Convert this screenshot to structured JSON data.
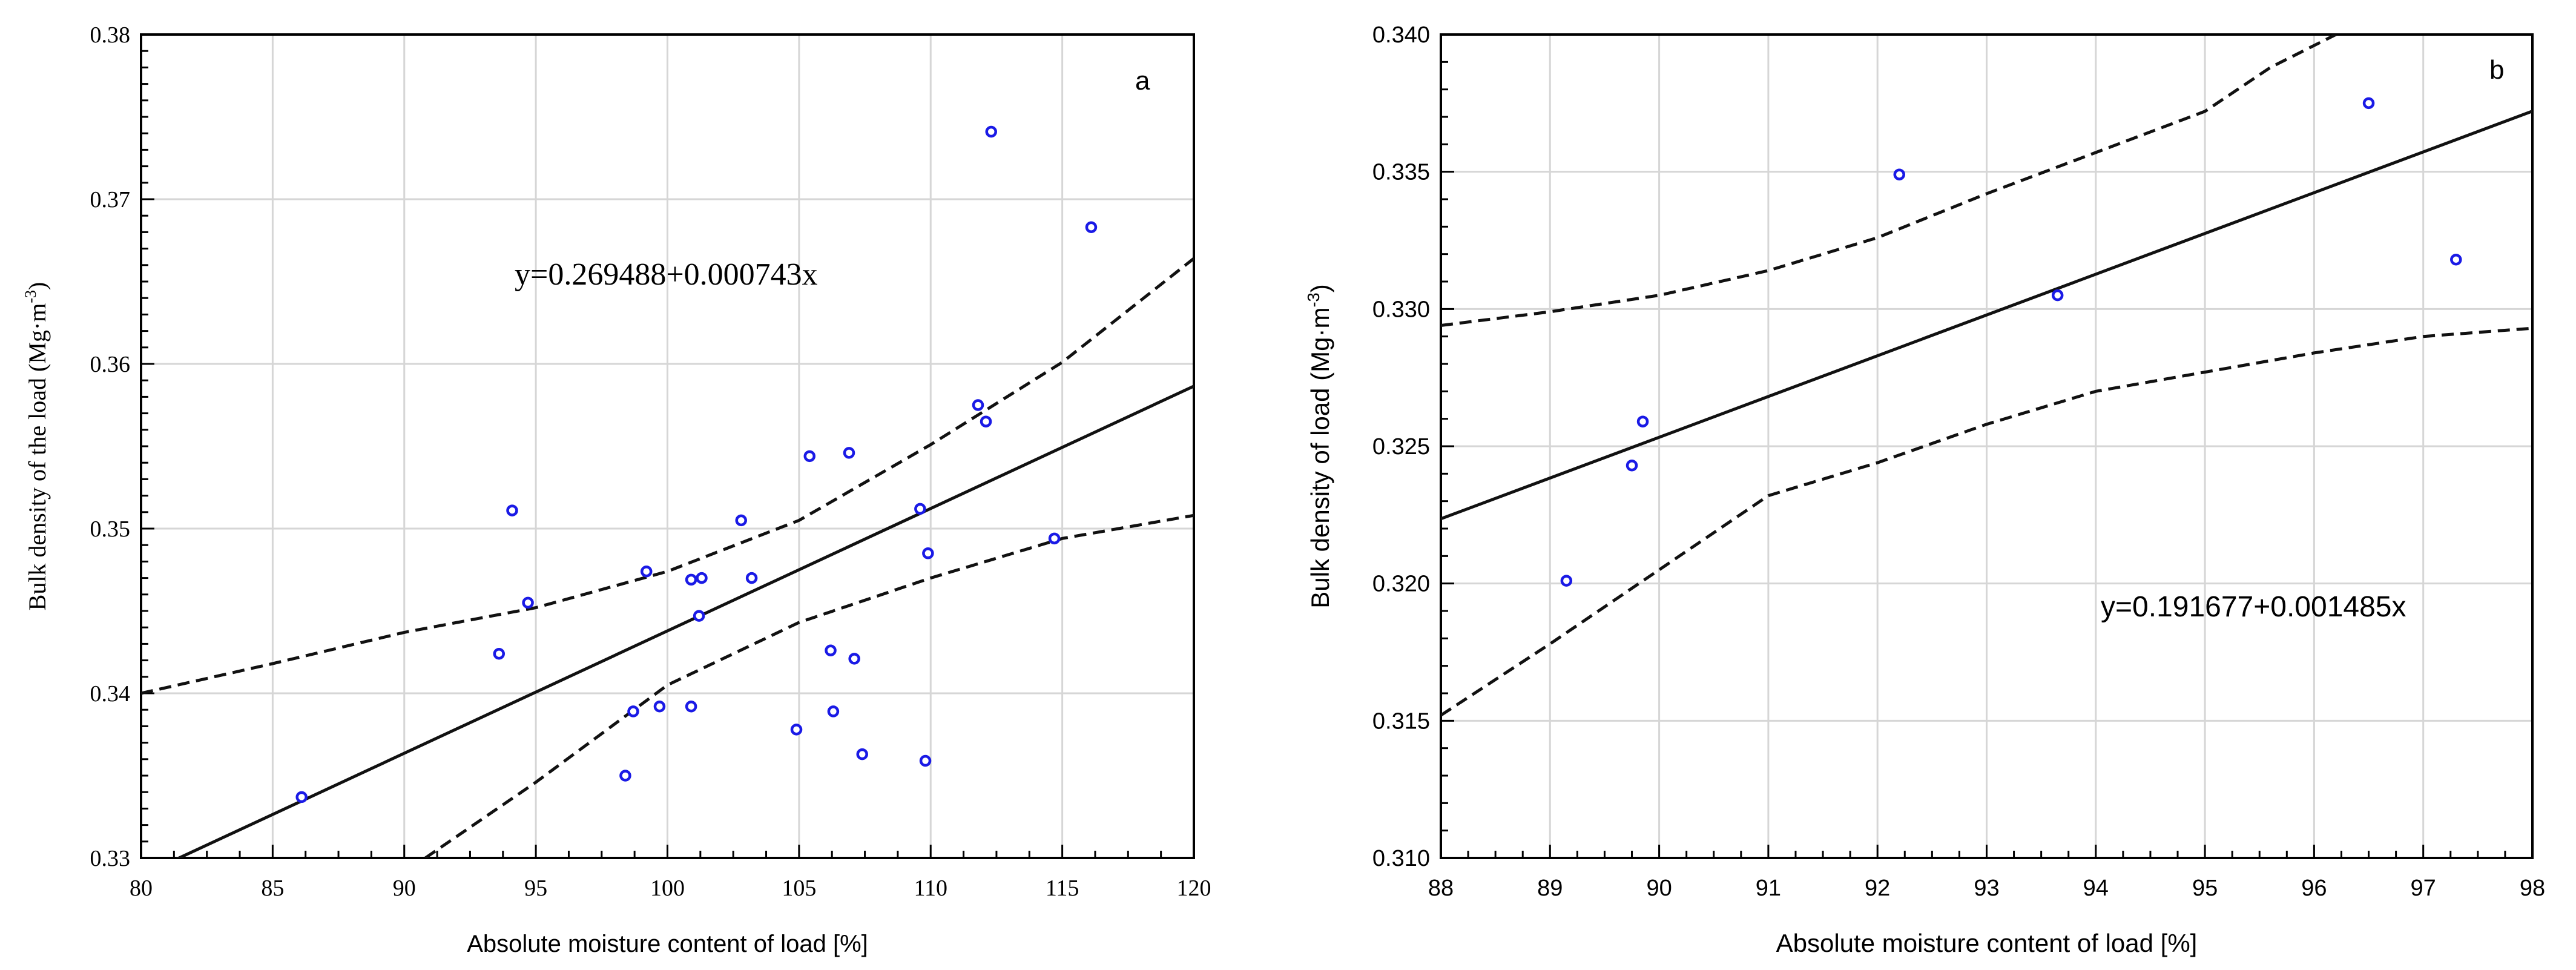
{
  "chart_data": [
    {
      "type": "scatter",
      "panel_label": "a",
      "xlabel": "Absolute moisture content of load [%]",
      "ylabel_main": "Bulk density of the load (Mg·m",
      "ylabel_sup": "-3",
      "ylabel_end": ")",
      "xlim": [
        80,
        120
      ],
      "ylim": [
        0.33,
        0.38
      ],
      "xticks": [
        80,
        85,
        90,
        95,
        100,
        105,
        110,
        115,
        120
      ],
      "yticks": [
        0.33,
        0.34,
        0.35,
        0.36,
        0.37,
        0.38
      ],
      "xtick_labels": [
        "80",
        "85",
        "90",
        "95",
        "100",
        "105",
        "110",
        "115",
        "120"
      ],
      "ytick_labels": [
        "0.33",
        "0.34",
        "0.35",
        "0.36",
        "0.37",
        "0.38"
      ],
      "grid": true,
      "equation": "y=0.269488+0.000743x",
      "regression": {
        "intercept": 0.269488,
        "slope": 0.000743
      },
      "points": [
        [
          86.1,
          0.3337
        ],
        [
          93.6,
          0.3424
        ],
        [
          94.1,
          0.3511
        ],
        [
          94.7,
          0.3455
        ],
        [
          98.4,
          0.335
        ],
        [
          98.7,
          0.3389
        ],
        [
          99.2,
          0.3474
        ],
        [
          99.7,
          0.3392
        ],
        [
          100.9,
          0.3469
        ],
        [
          100.9,
          0.3392
        ],
        [
          101.2,
          0.3447
        ],
        [
          101.3,
          0.347
        ],
        [
          102.8,
          0.3505
        ],
        [
          103.2,
          0.347
        ],
        [
          104.9,
          0.3378
        ],
        [
          105.4,
          0.3544
        ],
        [
          106.2,
          0.3426
        ],
        [
          106.3,
          0.3389
        ],
        [
          106.9,
          0.3546
        ],
        [
          107.1,
          0.3421
        ],
        [
          107.4,
          0.3363
        ],
        [
          109.6,
          0.3512
        ],
        [
          109.8,
          0.3359
        ],
        [
          109.9,
          0.3485
        ],
        [
          111.8,
          0.3575
        ],
        [
          112.1,
          0.3565
        ],
        [
          112.3,
          0.3741
        ],
        [
          114.7,
          0.3494
        ],
        [
          116.1,
          0.3683
        ]
      ],
      "ci_upper": [
        [
          80,
          0.34
        ],
        [
          85,
          0.3418
        ],
        [
          90,
          0.3437
        ],
        [
          95,
          0.3452
        ],
        [
          100,
          0.3474
        ],
        [
          105,
          0.3505
        ],
        [
          110,
          0.3551
        ],
        [
          115,
          0.3601
        ],
        [
          120,
          0.3664
        ]
      ],
      "ci_lower": [
        [
          90.8,
          0.33
        ],
        [
          95,
          0.3346
        ],
        [
          100,
          0.3405
        ],
        [
          105,
          0.3443
        ],
        [
          110,
          0.347
        ],
        [
          115,
          0.3494
        ],
        [
          120,
          0.3508
        ]
      ]
    },
    {
      "type": "scatter",
      "panel_label": "b",
      "xlabel": "Absolute moisture content of load [%]",
      "ylabel_main": "Bulk density of load (Mg·m",
      "ylabel_sup": "-3",
      "ylabel_end": ")",
      "xlim": [
        88,
        98
      ],
      "ylim": [
        0.31,
        0.34
      ],
      "xticks": [
        88,
        89,
        90,
        91,
        92,
        93,
        94,
        95,
        96,
        97,
        98
      ],
      "yticks": [
        0.31,
        0.315,
        0.32,
        0.325,
        0.33,
        0.335,
        0.34
      ],
      "xtick_labels": [
        "88",
        "89",
        "90",
        "91",
        "92",
        "93",
        "94",
        "95",
        "96",
        "97",
        "98"
      ],
      "ytick_labels": [
        "0.310",
        "0.315",
        "0.320",
        "0.325",
        "0.330",
        "0.335",
        "0.340"
      ],
      "grid": true,
      "equation": "y=0.191677+0.001485x",
      "regression": {
        "intercept": 0.191677,
        "slope": 0.001485
      },
      "points": [
        [
          89.15,
          0.3201
        ],
        [
          89.75,
          0.3243
        ],
        [
          89.85,
          0.3259
        ],
        [
          92.2,
          0.3349
        ],
        [
          93.65,
          0.3305
        ],
        [
          96.5,
          0.3375
        ],
        [
          97.3,
          0.3318
        ]
      ],
      "ci_upper": [
        [
          88,
          0.3294
        ],
        [
          89,
          0.3299
        ],
        [
          90,
          0.3305
        ],
        [
          91,
          0.3314
        ],
        [
          92,
          0.3326
        ],
        [
          93,
          0.3342
        ],
        [
          94,
          0.3357
        ],
        [
          95,
          0.3372
        ],
        [
          95.6,
          0.3388
        ],
        [
          96.2,
          0.34
        ]
      ],
      "ci_lower": [
        [
          88,
          0.3152
        ],
        [
          89,
          0.3178
        ],
        [
          90,
          0.3205
        ],
        [
          91,
          0.3232
        ],
        [
          92,
          0.3244
        ],
        [
          93,
          0.3258
        ],
        [
          94,
          0.327
        ],
        [
          95,
          0.3277
        ],
        [
          96,
          0.3284
        ],
        [
          97,
          0.329
        ],
        [
          98,
          0.3293
        ]
      ]
    }
  ],
  "colors": {
    "point": "#1a1ae6",
    "line": "#111111",
    "grid": "#d6d6d6",
    "axis": "#000000"
  }
}
